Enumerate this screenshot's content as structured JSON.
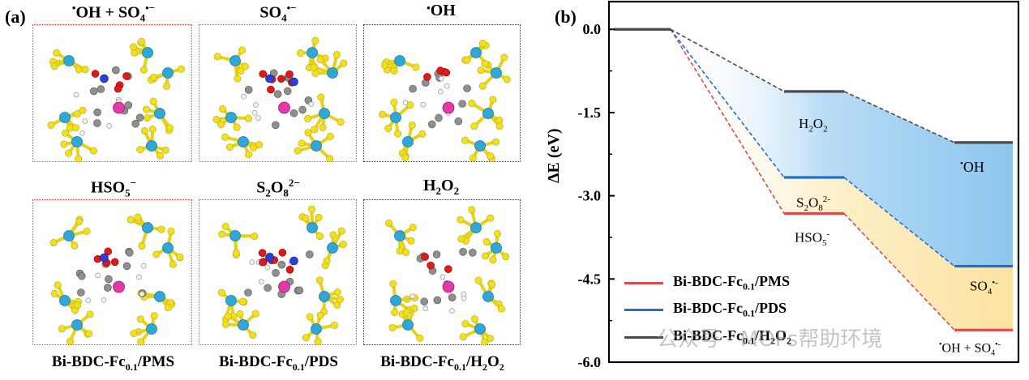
{
  "panel_a": {
    "label": "(a)",
    "top_titles": [
      "•OH + SO4•−",
      "SO4•−",
      "•OH"
    ],
    "bottom_titles": [
      "HSO5−",
      "S2O8²−",
      "H2O2"
    ],
    "captions": [
      "Bi-BDC-Fc0.1/PMS",
      "Bi-BDC-Fc0.1/PDS",
      "Bi-BDC-Fc0.1/H2O2"
    ],
    "box_colors": [
      "#e2474b",
      "#3a8fd9",
      "#2b2f4a"
    ]
  },
  "panel_b": {
    "label": "(b)"
  },
  "watermark": "公众号 · MOFs帮助环境",
  "chart_data": {
    "type": "energy_profile",
    "ylabel": "ΔE (eV)",
    "ylim": [
      -6.0,
      0.5
    ],
    "yticks": [
      0.0,
      -1.5,
      -3.0,
      -4.5,
      -6.0
    ],
    "ytick_labels": [
      "0.0",
      "-1.5",
      "-3.0",
      "-4.5",
      "-6.0"
    ],
    "stages": [
      0,
      1,
      2
    ],
    "series": [
      {
        "name": "Bi-BDC-Fc0.1/PMS",
        "color": "#e2474b",
        "values": [
          0.0,
          -3.32,
          -5.42
        ],
        "level_labels": [
          "",
          "HSO5-",
          "•OH + SO4•-"
        ]
      },
      {
        "name": "Bi-BDC-Fc0.1/PDS",
        "color": "#1f6fd1",
        "values": [
          0.0,
          -2.67,
          -4.27
        ],
        "level_labels": [
          "",
          "S2O8²-",
          "SO4•-"
        ]
      },
      {
        "name": "Bi-BDC-Fc0.1/H2O2",
        "color": "#4a4a4a",
        "values": [
          0.0,
          -1.12,
          -2.04
        ],
        "level_labels": [
          "",
          "H2O2",
          "•OH"
        ]
      }
    ],
    "legend_position": "bottom-left",
    "fill_colors": {
      "blue_region": "#8cc6ee",
      "yellow_region": "#fbe6a6"
    }
  }
}
